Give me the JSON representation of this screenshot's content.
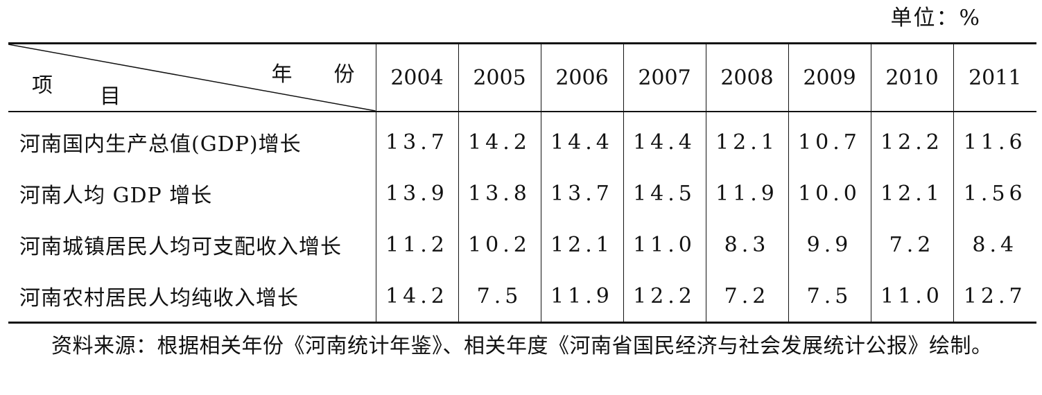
{
  "unit_label": "单位：%",
  "corner_header": {
    "top_right": "年份",
    "bottom_left_1": "项",
    "bottom_left_2": "目"
  },
  "years": [
    "2004",
    "2005",
    "2006",
    "2007",
    "2008",
    "2009",
    "2010",
    "2011"
  ],
  "rows": [
    {
      "label": "河南国内生产总值(GDP)增长",
      "values": [
        "13.7",
        "14.2",
        "14.4",
        "14.4",
        "12.1",
        "10.7",
        "12.2",
        "11.6"
      ]
    },
    {
      "label": "河南人均 GDP 增长",
      "values": [
        "13.9",
        "13.8",
        "13.7",
        "14.5",
        "11.9",
        "10.0",
        "12.1",
        "1.56"
      ]
    },
    {
      "label": "河南城镇居民人均可支配收入增长",
      "values": [
        "11.2",
        "10.2",
        "12.1",
        "11.0",
        "8.3",
        "9.9",
        "7.2",
        "8.4"
      ]
    },
    {
      "label": "河南农村居民人均纯收入增长",
      "values": [
        "14.2",
        "7.5",
        "11.9",
        "12.2",
        "7.2",
        "7.5",
        "11.0",
        "12.7"
      ]
    }
  ],
  "source_note": "资料来源：根据相关年份《河南统计年鉴》、相关年度《河南省国民经济与社会发展统计公报》绘制。"
}
